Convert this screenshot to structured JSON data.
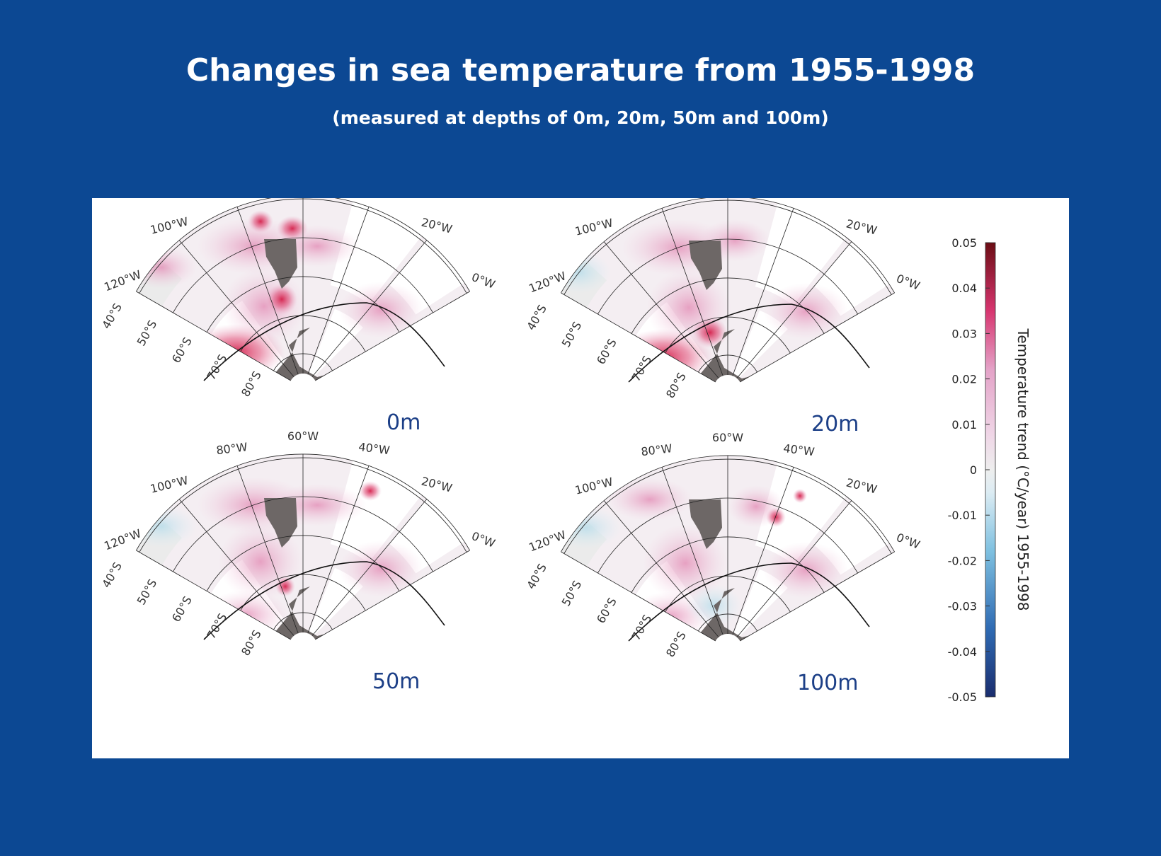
{
  "title": "Changes in sea temperature from 1955-1998",
  "subtitle": "(measured at depths of 0m, 20m, 50m and 100m)",
  "map_axes": {
    "longitude_labels": [
      "120°W",
      "100°W",
      "80°W",
      "60°W",
      "40°W",
      "20°W",
      "0°W"
    ],
    "latitude_labels": [
      "40°S",
      "50°S",
      "60°S",
      "70°S",
      "80°S"
    ]
  },
  "panels": [
    {
      "depth": "0m"
    },
    {
      "depth": "20m"
    },
    {
      "depth": "50m"
    },
    {
      "depth": "100m"
    }
  ],
  "colorbar": {
    "title": "Temperature trend (°C/year) 1955-1998",
    "ticks": [
      "0.05",
      "0.04",
      "0.03",
      "0.02",
      "0.01",
      "0",
      "-0.01",
      "-0.02",
      "-0.03",
      "-0.04",
      "-0.05"
    ],
    "range": [
      -0.05,
      0.05
    ],
    "colors": [
      "#1a2d6e",
      "#2f6bb3",
      "#7ec0e0",
      "#dcecf3",
      "#eeeeee",
      "#efd5e6",
      "#e4a3c8",
      "#d7356f",
      "#6b0d14"
    ]
  },
  "colors": {
    "background": "#0c4893",
    "land": "#6d6766",
    "panel": "#ffffff",
    "depth_label": "#1c3f87"
  }
}
